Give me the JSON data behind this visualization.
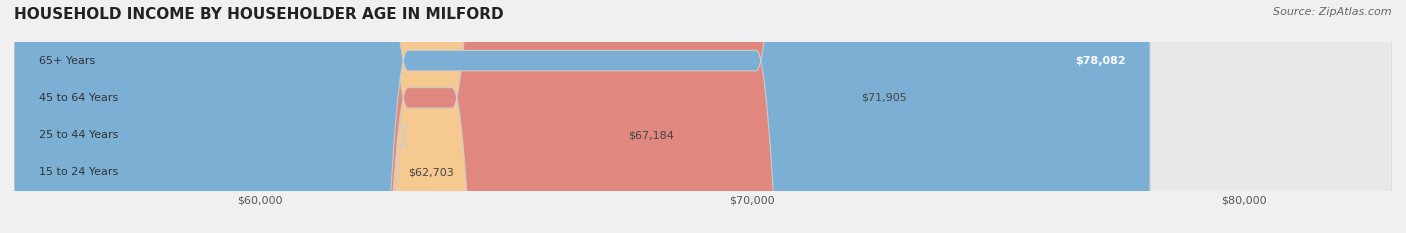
{
  "title": "HOUSEHOLD INCOME BY HOUSEHOLDER AGE IN MILFORD",
  "source": "Source: ZipAtlas.com",
  "categories": [
    "15 to 24 Years",
    "25 to 44 Years",
    "45 to 64 Years",
    "65+ Years"
  ],
  "values": [
    62703,
    67184,
    71905,
    78082
  ],
  "bar_colors": [
    "#f4a0b0",
    "#f5c990",
    "#e08880",
    "#7bafd4"
  ],
  "bar_edge_colors": [
    "#e07080",
    "#e0a050",
    "#c06060",
    "#5090c0"
  ],
  "value_labels": [
    "$62,703",
    "$67,184",
    "$71,905",
    "$78,082"
  ],
  "xmin": 55000,
  "xmax": 83000,
  "xticks": [
    60000,
    70000,
    80000
  ],
  "xtick_labels": [
    "$60,000",
    "$70,000",
    "$80,000"
  ],
  "background_color": "#f0f0f0",
  "bar_background_color": "#e8e8e8",
  "title_fontsize": 11,
  "source_fontsize": 8,
  "label_fontsize": 8,
  "value_fontsize": 8,
  "tick_fontsize": 8
}
